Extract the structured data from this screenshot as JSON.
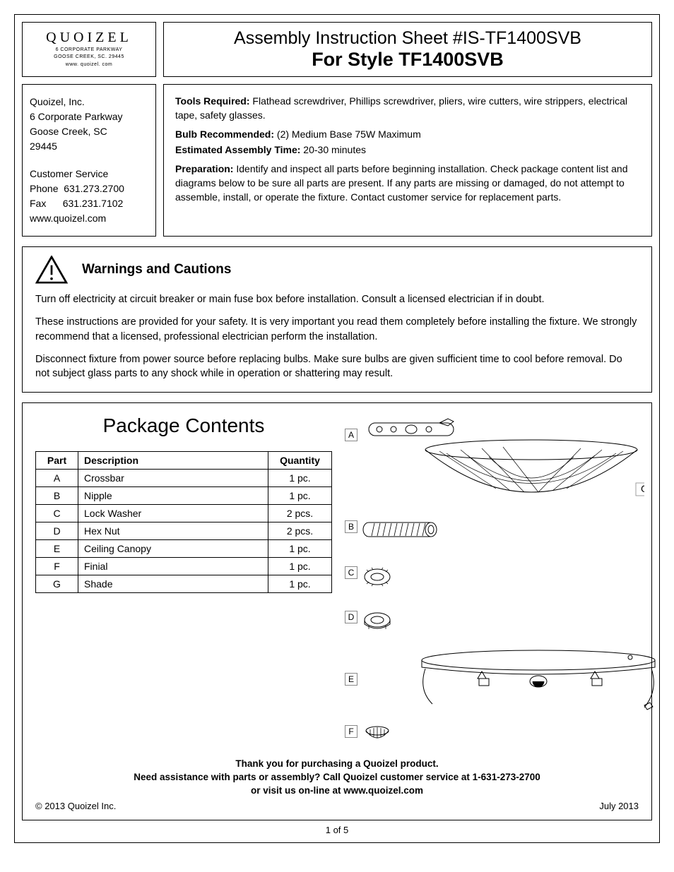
{
  "logo": {
    "brand": "QUOIZEL",
    "addr1": "6 CORPORATE PARKWAY",
    "addr2": "GOOSE CREEK, SC. 29445",
    "addr3": "www. quoizel. com"
  },
  "title": {
    "line1": "Assembly Instruction Sheet #IS-TF1400SVB",
    "line2": "For Style TF1400SVB"
  },
  "contact": {
    "company": "Quoizel, Inc.",
    "street": "6 Corporate Parkway",
    "city": "Goose Creek, SC",
    "zip": "29445",
    "cs_label": "Customer  Service",
    "phone_label": "Phone",
    "phone": "631.273.2700",
    "fax_label": "Fax",
    "fax": "631.231.7102",
    "web": "www.quoizel.com"
  },
  "details": {
    "tools_label": "Tools Required:",
    "tools": "Flathead screwdriver, Phillips screwdriver, pliers, wire cutters, wire strippers, electrical tape, safety glasses.",
    "bulb_label": "Bulb Recommended:",
    "bulb": "(2) Medium Base 75W Maximum",
    "time_label": "Estimated Assembly Time:",
    "time": "20-30 minutes",
    "prep_label": "Preparation:",
    "prep": "Identify and inspect all parts before beginning installation. Check package content list and diagrams below to be sure all parts are present. If any parts are missing or damaged, do not attempt to assemble, install, or operate the fixture. Contact customer service for replacement parts."
  },
  "warnings": {
    "title": "Warnings and Cautions",
    "p1": "Turn off electricity at circuit breaker or main fuse box before installation. Consult a licensed electrician if in doubt.",
    "p2": "These instructions are provided for your safety. It is very important you read them completely before installing the fixture. We strongly recommend that a licensed, professional electrician perform the installation.",
    "p3": "Disconnect fixture from power source before replacing bulbs. Make sure bulbs are given sufficient time to cool before removal. Do not subject glass parts to any shock while in operation or shattering may result."
  },
  "contents": {
    "title": "Package Contents",
    "columns": [
      "Part",
      "Description",
      "Quantity"
    ],
    "rows": [
      [
        "A",
        "Crossbar",
        "1 pc."
      ],
      [
        "B",
        "Nipple",
        "1 pc."
      ],
      [
        "C",
        "Lock Washer",
        "2 pcs."
      ],
      [
        "D",
        "Hex Nut",
        "2 pcs."
      ],
      [
        "E",
        "Ceiling Canopy",
        "1 pc."
      ],
      [
        "F",
        "Finial",
        "1 pc."
      ],
      [
        "G",
        "Shade",
        "1 pc."
      ]
    ],
    "labels": {
      "A": "A",
      "B": "B",
      "C": "C",
      "D": "D",
      "E": "E",
      "F": "F",
      "G": "G"
    }
  },
  "footer": {
    "thank": "Thank you for purchasing a Quoizel product.",
    "assist": "Need assistance with parts or assembly? Call Quoizel customer service at 1-631-273-2700",
    "visit": "or visit us on-line at www.quoizel.com",
    "copyright": "© 2013  Quoizel Inc.",
    "date": "July 2013",
    "page": "1 of 5"
  }
}
